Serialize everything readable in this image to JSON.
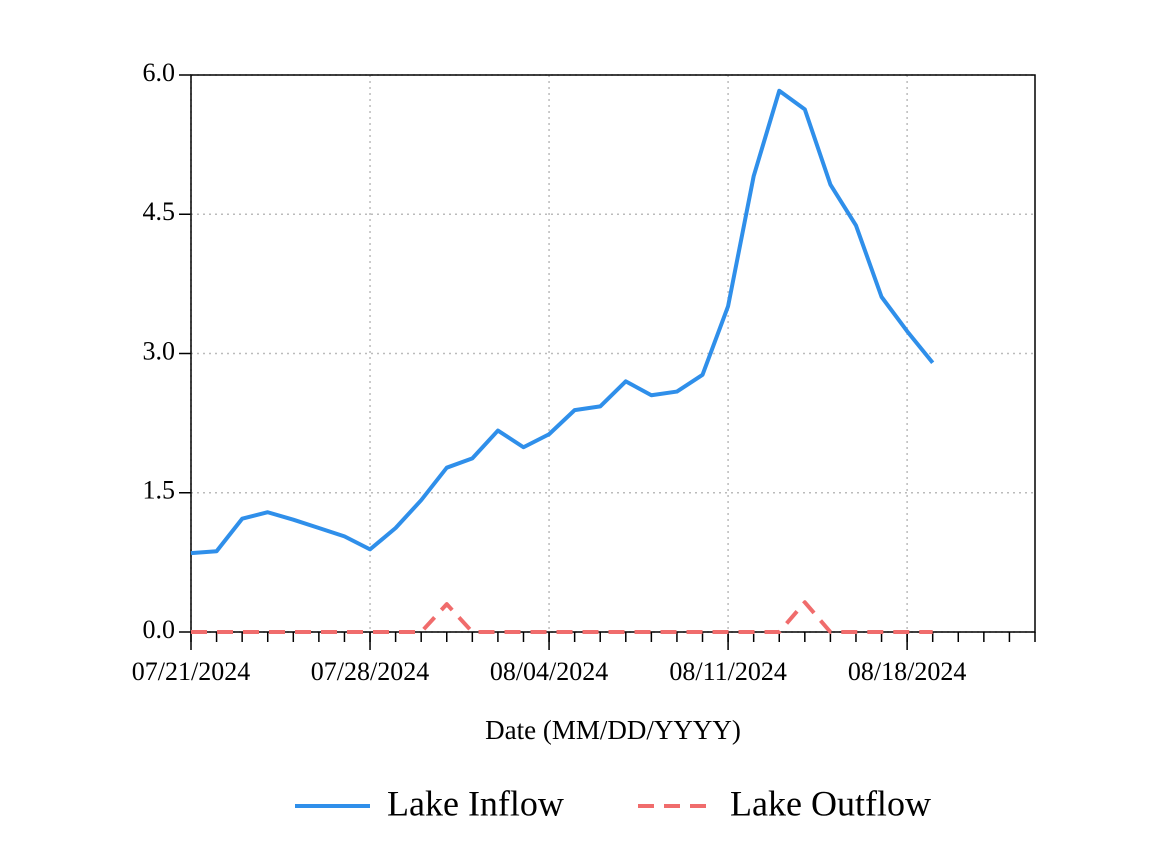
{
  "chart_data": {
    "type": "line",
    "xlabel": "Date (MM/DD/YYYY)",
    "x": [
      "07/21/2024",
      "07/22/2024",
      "07/23/2024",
      "07/24/2024",
      "07/25/2024",
      "07/26/2024",
      "07/27/2024",
      "07/28/2024",
      "07/29/2024",
      "07/30/2024",
      "07/31/2024",
      "08/01/2024",
      "08/02/2024",
      "08/03/2024",
      "08/04/2024",
      "08/05/2024",
      "08/06/2024",
      "08/07/2024",
      "08/08/2024",
      "08/09/2024",
      "08/10/2024",
      "08/11/2024",
      "08/12/2024",
      "08/13/2024",
      "08/14/2024",
      "08/15/2024",
      "08/16/2024",
      "08/17/2024",
      "08/18/2024",
      "08/19/2024"
    ],
    "series": [
      {
        "name": "Lake Inflow",
        "color": "#2f8fea",
        "dash": "solid",
        "values": [
          0.85,
          0.87,
          1.22,
          1.29,
          1.21,
          1.12,
          1.03,
          0.89,
          1.12,
          1.42,
          1.77,
          1.87,
          2.17,
          1.99,
          2.13,
          2.39,
          2.43,
          2.7,
          2.55,
          2.59,
          2.77,
          3.51,
          4.91,
          5.83,
          5.63,
          4.82,
          4.38,
          3.61,
          3.24,
          2.9
        ]
      },
      {
        "name": "Lake Outflow",
        "color": "#f06c6c",
        "dash": "dashed",
        "values": [
          0,
          0,
          0,
          0,
          0,
          0,
          0,
          0,
          0,
          0,
          0.3,
          0,
          0,
          0,
          0,
          0,
          0,
          0,
          0,
          0,
          0,
          0,
          0,
          0,
          0.32,
          0,
          0,
          0,
          0,
          0
        ]
      }
    ],
    "xlim": [
      "07/21/2024",
      "08/23/2024"
    ],
    "xticks": [
      "07/21/2024",
      "07/28/2024",
      "08/04/2024",
      "08/11/2024",
      "08/18/2024"
    ],
    "ylim": [
      0,
      6
    ],
    "yticks": [
      {
        "value": 0,
        "label": "0.0"
      },
      {
        "value": 1.5,
        "label": "1.5"
      },
      {
        "value": 3,
        "label": "3.0"
      },
      {
        "value": 4.5,
        "label": "4.5"
      },
      {
        "value": 6,
        "label": "6.0"
      }
    ],
    "grid": true,
    "legend": "bottom"
  }
}
